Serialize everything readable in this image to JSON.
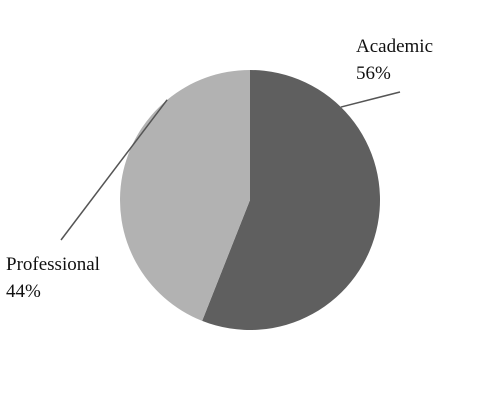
{
  "chart_data": {
    "type": "pie",
    "title": "",
    "slices": [
      {
        "name": "Academic",
        "value": 56,
        "value_label": "56%",
        "color": "#5f5f5f"
      },
      {
        "name": "Professional",
        "value": 44,
        "value_label": "44%",
        "color": "#b2b2b2"
      }
    ],
    "start_angle_deg": 0,
    "direction": "clockwise",
    "legend": "none",
    "label_style": "outside-with-leader-lines"
  }
}
